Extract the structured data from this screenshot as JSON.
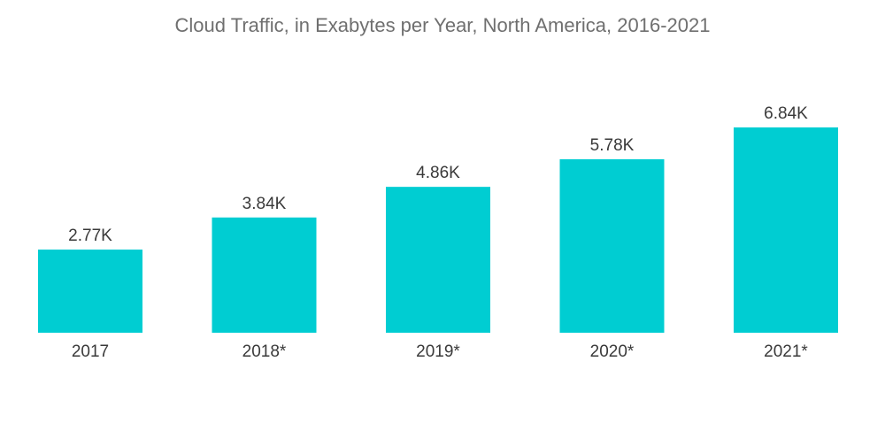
{
  "chart_data": {
    "type": "bar",
    "title": "Cloud Traffic, in Exabytes per Year, North America, 2016-2021",
    "xlabel": "",
    "ylabel": "",
    "categories": [
      "2017",
      "2018*",
      "2019*",
      "2020*",
      "2021*"
    ],
    "values": [
      2770,
      3840,
      4860,
      5780,
      6840
    ],
    "data_labels": [
      "2.77K",
      "3.84K",
      "4.86K",
      "5.78K",
      "6.84K"
    ],
    "ylim": [
      0,
      6840
    ],
    "grid": false,
    "legend": "none",
    "colors": {
      "bar": "#00CDD2",
      "axis": "#3a3a3a",
      "title": "#6f6f6f"
    }
  }
}
